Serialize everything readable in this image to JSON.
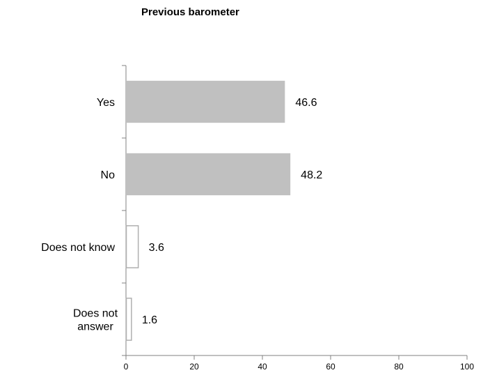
{
  "chart_data": {
    "type": "bar",
    "orientation": "horizontal",
    "title": "Previous barometer",
    "categories": [
      [
        "Yes"
      ],
      [
        "No"
      ],
      [
        "Does not know"
      ],
      [
        "Does not",
        "answer"
      ]
    ],
    "values": [
      46.6,
      48.2,
      3.6,
      1.6
    ],
    "value_labels": [
      "46.6",
      "48.2",
      "3.6",
      "1.6"
    ],
    "bar_styles": [
      "filled",
      "filled",
      "outline",
      "outline"
    ],
    "xlim": [
      0,
      100
    ],
    "x_ticks": [
      0,
      20,
      40,
      60,
      80,
      100
    ],
    "x_tick_labels": [
      "0",
      "20",
      "40",
      "60",
      "80",
      "100"
    ],
    "xlabel": "",
    "ylabel": "",
    "grid": false,
    "legend": "none",
    "colors": {
      "filled_bar": "#c0c0c0",
      "outline_bar_stroke": "#b0b0b0",
      "outline_bar_fill": "#ffffff",
      "axis": "#808080"
    }
  }
}
